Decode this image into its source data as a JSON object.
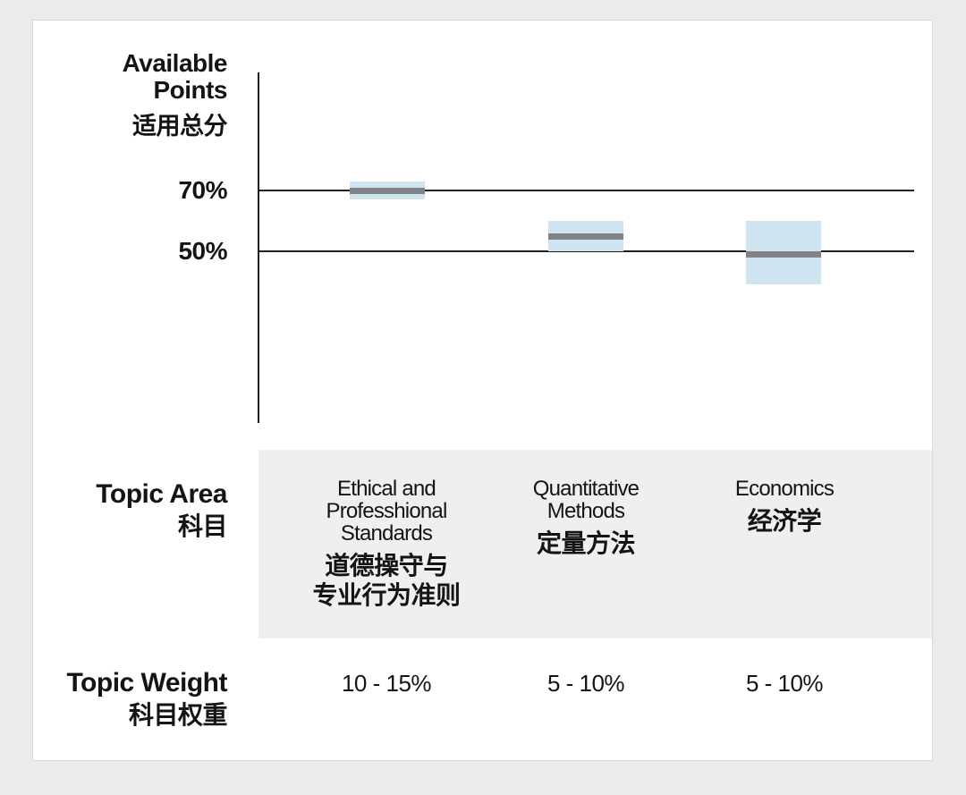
{
  "page": {
    "background_color": "#ebebeb",
    "card_background": "#ffffff"
  },
  "y_axis": {
    "title_line1": "Available",
    "title_line2": "Points",
    "title_zh": "适用总分",
    "ticks": [
      {
        "label": "70%"
      },
      {
        "label": "50%"
      }
    ]
  },
  "rows": {
    "topic_area": {
      "en": "Topic Area",
      "zh": "科目"
    },
    "topic_weight": {
      "en": "Topic Weight",
      "zh": "科目权重"
    }
  },
  "columns": [
    {
      "en_lines": [
        "Ethical and",
        "Professhional",
        "Standards"
      ],
      "zh_lines": [
        "道德操守与",
        "专业行为准则"
      ],
      "weight": "10 - 15%"
    },
    {
      "en_lines": [
        "Quantitative",
        "Methods"
      ],
      "zh_lines": [
        "定量方法"
      ],
      "weight": "5 - 10%"
    },
    {
      "en_lines": [
        "Economics"
      ],
      "zh_lines": [
        "经济学"
      ],
      "weight": "5 - 10%"
    }
  ],
  "chart_data": {
    "type": "bar",
    "subtype": "floating-range-bars-with-median-line",
    "title": "Available Points 适用总分",
    "categories": [
      "Ethical and Professhional Standards 道德操守与专业行为准则",
      "Quantitative Methods 定量方法",
      "Economics 经济学"
    ],
    "series": [
      {
        "name": "available-points-range-percent",
        "values": [
          [
            67,
            73
          ],
          [
            50,
            60
          ],
          [
            39,
            60
          ]
        ]
      },
      {
        "name": "median-percent",
        "values": [
          70,
          55,
          49
        ]
      }
    ],
    "topic_weights": [
      "10 - 15%",
      "5 - 10%",
      "5 - 10%"
    ],
    "ytick_labels": [
      "70%",
      "50%"
    ],
    "ytick_values_pct": [
      70,
      50
    ],
    "grid": "horizontal reference lines at 70% and 50%",
    "legend": "none",
    "colors": {
      "range_fill": "#cfe4f0",
      "median_line": "#808285",
      "axis_line": "#1f1f1f",
      "band_background": "#efefef"
    }
  }
}
